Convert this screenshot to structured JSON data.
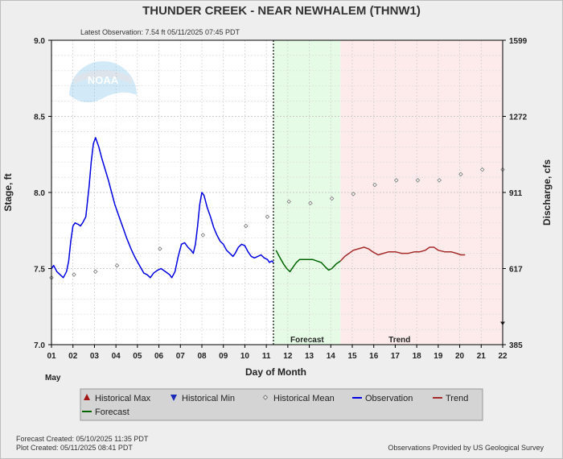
{
  "header": {
    "title": "THUNDER CREEK - NEAR NEWHALEM  (THNW1)",
    "latest_observation": "Latest Observation: 7.54 ft 05/11/2025 07:45 PDT"
  },
  "logo": {
    "text": "NOAA"
  },
  "footer": {
    "forecast_created": "Forecast Created: 05/10/2025 11:35 PDT",
    "plot_created": "Plot Created: 05/11/2025 08:41 PDT",
    "credit": "Observations Provided by US Geological Survey"
  },
  "legend": {
    "items": [
      {
        "key": "max",
        "label": "Historical Max",
        "color": "#a31515",
        "marker": "triangle-up"
      },
      {
        "key": "min",
        "label": "Historical Min",
        "color": "#1a2bb5",
        "marker": "triangle-down"
      },
      {
        "key": "mean",
        "label": "Historical Mean",
        "color": "#777777",
        "marker": "diamond"
      },
      {
        "key": "obs",
        "label": "Observation",
        "color": "#0000e0",
        "marker": "line"
      },
      {
        "key": "trend",
        "label": "Trend",
        "color": "#a52a2a",
        "marker": "line"
      },
      {
        "key": "forecast",
        "label": "Forecast",
        "color": "#006400",
        "marker": "line"
      }
    ]
  },
  "chart_data": {
    "type": "line",
    "title": "THUNDER CREEK - NEAR NEWHALEM  (THNW1)",
    "xlabel": "Day of Month",
    "x_month_label": "May",
    "ylabel": "Stage, ft",
    "y2label": "Discharge, cfs",
    "xlim": [
      1,
      22
    ],
    "ylim": [
      7.0,
      9.0
    ],
    "x_ticks": [
      "01",
      "02",
      "03",
      "04",
      "05",
      "06",
      "07",
      "08",
      "09",
      "10",
      "11",
      "12",
      "13",
      "14",
      "15",
      "16",
      "17",
      "18",
      "19",
      "20",
      "21",
      "22"
    ],
    "y_ticks": [
      "7.0",
      "7.5",
      "8.0",
      "8.5",
      "9.0"
    ],
    "y2_ticks": [
      {
        "stage": 7.0,
        "label": "385"
      },
      {
        "stage": 7.5,
        "label": "617"
      },
      {
        "stage": 8.0,
        "label": "911"
      },
      {
        "stage": 8.5,
        "label": "1272"
      },
      {
        "stage": 9.0,
        "label": "1599"
      }
    ],
    "grid": true,
    "current_time_day": 11.33,
    "regions": [
      {
        "name": "Forecast",
        "from": 11.33,
        "to": 14.45,
        "color": "#e6fbe6",
        "label_at": 12.9
      },
      {
        "name": "Trend",
        "from": 14.45,
        "to": 22.0,
        "color": "#fdeaea",
        "label_at": 17.2
      }
    ],
    "series": [
      {
        "name": "Observation",
        "color": "#0000e0",
        "points": [
          [
            1.0,
            7.5
          ],
          [
            1.1,
            7.52
          ],
          [
            1.25,
            7.48
          ],
          [
            1.4,
            7.46
          ],
          [
            1.55,
            7.44
          ],
          [
            1.7,
            7.48
          ],
          [
            1.8,
            7.55
          ],
          [
            1.9,
            7.68
          ],
          [
            2.0,
            7.78
          ],
          [
            2.1,
            7.8
          ],
          [
            2.25,
            7.79
          ],
          [
            2.35,
            7.78
          ],
          [
            2.45,
            7.8
          ],
          [
            2.6,
            7.84
          ],
          [
            2.75,
            8.04
          ],
          [
            2.85,
            8.2
          ],
          [
            2.95,
            8.32
          ],
          [
            3.05,
            8.36
          ],
          [
            3.2,
            8.3
          ],
          [
            3.35,
            8.22
          ],
          [
            3.5,
            8.15
          ],
          [
            3.65,
            8.08
          ],
          [
            3.8,
            8.0
          ],
          [
            3.95,
            7.92
          ],
          [
            4.1,
            7.86
          ],
          [
            4.3,
            7.78
          ],
          [
            4.5,
            7.7
          ],
          [
            4.7,
            7.63
          ],
          [
            4.9,
            7.57
          ],
          [
            5.1,
            7.52
          ],
          [
            5.3,
            7.47
          ],
          [
            5.45,
            7.46
          ],
          [
            5.6,
            7.44
          ],
          [
            5.75,
            7.47
          ],
          [
            5.95,
            7.49
          ],
          [
            6.1,
            7.5
          ],
          [
            6.3,
            7.48
          ],
          [
            6.5,
            7.46
          ],
          [
            6.6,
            7.44
          ],
          [
            6.75,
            7.48
          ],
          [
            6.9,
            7.58
          ],
          [
            7.05,
            7.66
          ],
          [
            7.2,
            7.67
          ],
          [
            7.35,
            7.64
          ],
          [
            7.5,
            7.62
          ],
          [
            7.6,
            7.6
          ],
          [
            7.7,
            7.66
          ],
          [
            7.8,
            7.78
          ],
          [
            7.9,
            7.92
          ],
          [
            8.0,
            8.0
          ],
          [
            8.1,
            7.98
          ],
          [
            8.25,
            7.9
          ],
          [
            8.4,
            7.84
          ],
          [
            8.55,
            7.77
          ],
          [
            8.7,
            7.72
          ],
          [
            8.85,
            7.68
          ],
          [
            9.0,
            7.66
          ],
          [
            9.15,
            7.62
          ],
          [
            9.3,
            7.6
          ],
          [
            9.45,
            7.58
          ],
          [
            9.55,
            7.6
          ],
          [
            9.7,
            7.64
          ],
          [
            9.85,
            7.66
          ],
          [
            10.0,
            7.65
          ],
          [
            10.15,
            7.61
          ],
          [
            10.3,
            7.58
          ],
          [
            10.45,
            7.57
          ],
          [
            10.6,
            7.58
          ],
          [
            10.75,
            7.59
          ],
          [
            10.9,
            7.57
          ],
          [
            11.05,
            7.56
          ],
          [
            11.15,
            7.54
          ],
          [
            11.25,
            7.55
          ],
          [
            11.33,
            7.54
          ]
        ]
      },
      {
        "name": "Forecast",
        "color": "#006400",
        "points": [
          [
            11.45,
            7.62
          ],
          [
            11.6,
            7.58
          ],
          [
            11.8,
            7.53
          ],
          [
            11.95,
            7.5
          ],
          [
            12.1,
            7.48
          ],
          [
            12.25,
            7.51
          ],
          [
            12.4,
            7.54
          ],
          [
            12.55,
            7.56
          ],
          [
            12.75,
            7.56
          ],
          [
            12.95,
            7.56
          ],
          [
            13.15,
            7.56
          ],
          [
            13.35,
            7.55
          ],
          [
            13.55,
            7.54
          ],
          [
            13.75,
            7.51
          ],
          [
            13.9,
            7.49
          ],
          [
            14.05,
            7.5
          ],
          [
            14.25,
            7.53
          ],
          [
            14.45,
            7.55
          ]
        ]
      },
      {
        "name": "Trend",
        "color": "#a52a2a",
        "points": [
          [
            14.45,
            7.55
          ],
          [
            14.65,
            7.58
          ],
          [
            14.85,
            7.6
          ],
          [
            15.05,
            7.62
          ],
          [
            15.3,
            7.63
          ],
          [
            15.55,
            7.64
          ],
          [
            15.75,
            7.63
          ],
          [
            15.95,
            7.61
          ],
          [
            16.2,
            7.59
          ],
          [
            16.45,
            7.6
          ],
          [
            16.7,
            7.61
          ],
          [
            17.0,
            7.61
          ],
          [
            17.3,
            7.6
          ],
          [
            17.6,
            7.6
          ],
          [
            17.9,
            7.61
          ],
          [
            18.15,
            7.61
          ],
          [
            18.4,
            7.62
          ],
          [
            18.6,
            7.64
          ],
          [
            18.8,
            7.64
          ],
          [
            19.0,
            7.62
          ],
          [
            19.3,
            7.61
          ],
          [
            19.6,
            7.61
          ],
          [
            19.85,
            7.6
          ],
          [
            20.05,
            7.59
          ],
          [
            20.25,
            7.59
          ]
        ]
      },
      {
        "name": "Historical Mean",
        "color": "#777777",
        "points": [
          [
            1.0,
            7.44
          ],
          [
            2.05,
            7.46
          ],
          [
            3.05,
            7.48
          ],
          [
            4.05,
            7.52
          ],
          [
            6.05,
            7.63
          ],
          [
            8.05,
            7.72
          ],
          [
            10.05,
            7.78
          ],
          [
            11.05,
            7.84
          ],
          [
            12.05,
            7.94
          ],
          [
            13.05,
            7.93
          ],
          [
            14.05,
            7.96
          ],
          [
            15.05,
            7.99
          ],
          [
            16.05,
            8.05
          ],
          [
            17.05,
            8.08
          ],
          [
            18.05,
            8.08
          ],
          [
            19.05,
            8.08
          ],
          [
            20.05,
            8.12
          ],
          [
            21.05,
            8.15
          ],
          [
            22.0,
            8.15
          ]
        ]
      },
      {
        "name": "Historical Min",
        "color": "#1a2bb5",
        "points": [
          [
            22.0,
            7.14
          ]
        ]
      }
    ]
  }
}
